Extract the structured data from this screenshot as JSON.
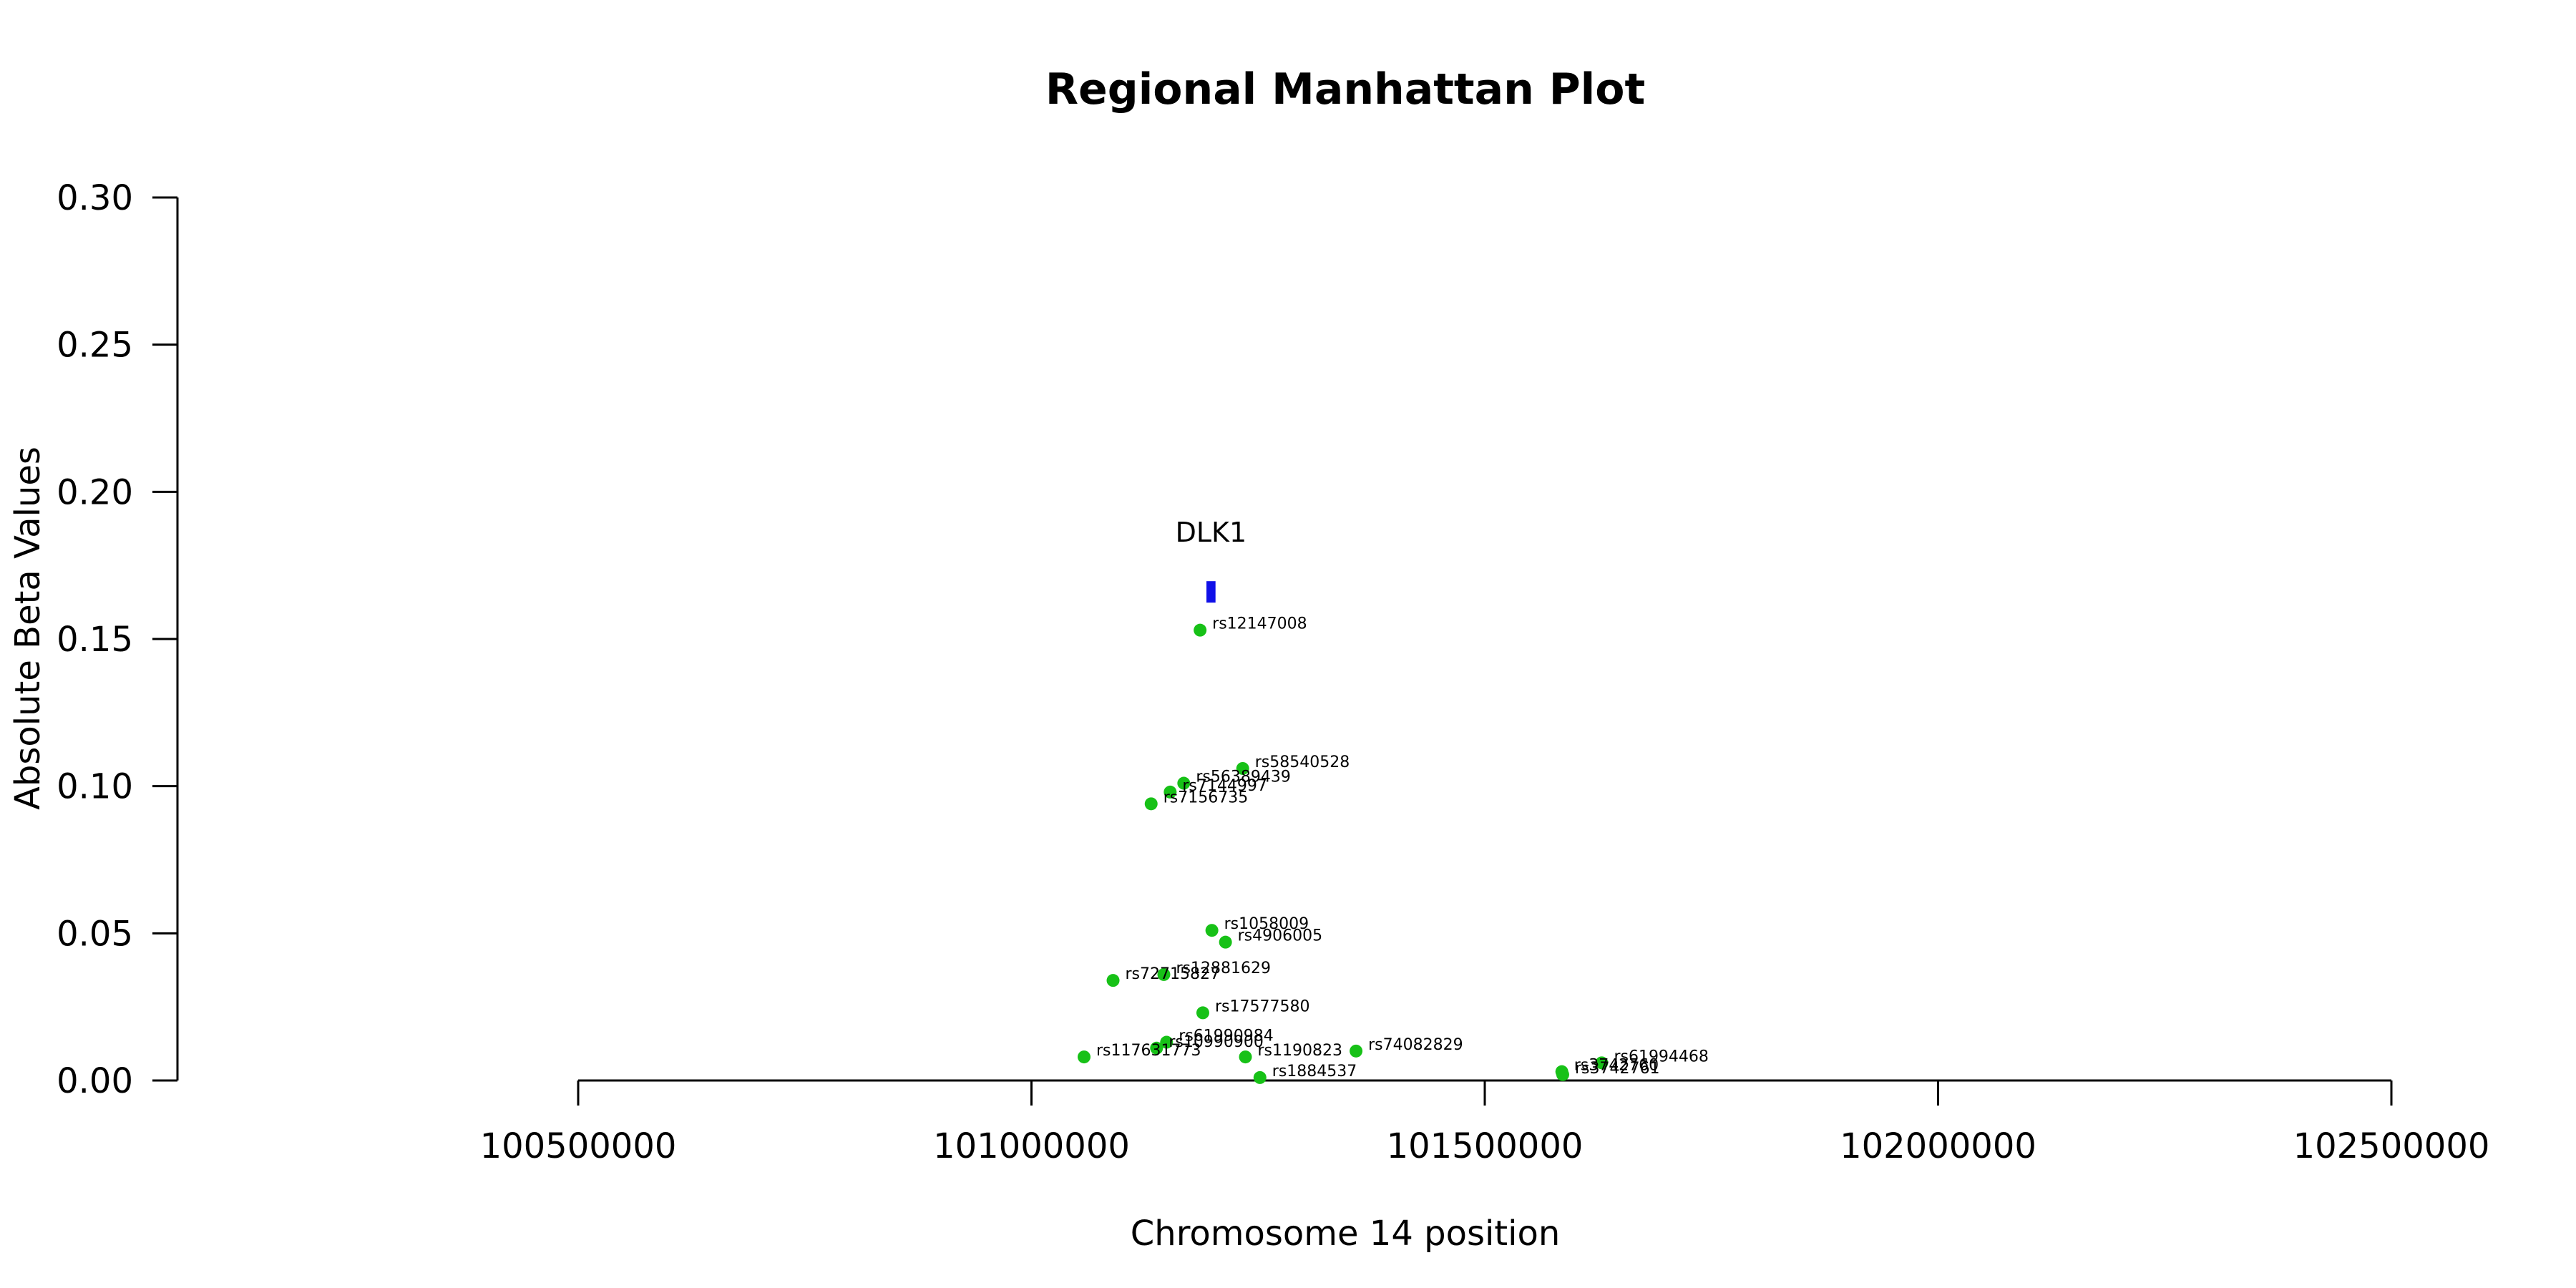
{
  "chart_data": {
    "type": "scatter",
    "title": "Regional Manhattan Plot",
    "xlabel": "Chromosome 14 position",
    "ylabel": "Absolute Beta Values",
    "xlim": [
      100500000,
      102500000
    ],
    "ylim": [
      0,
      0.3
    ],
    "x_ticks": [
      100500000,
      101000000,
      101500000,
      102000000,
      102500000
    ],
    "x_tick_labels": [
      "100500000",
      "101000000",
      "101500000",
      "102000000",
      "102500000"
    ],
    "y_ticks": [
      0.0,
      0.05,
      0.1,
      0.15,
      0.2,
      0.25,
      0.3
    ],
    "y_tick_labels": [
      "0.00",
      "0.05",
      "0.10",
      "0.15",
      "0.20",
      "0.25",
      "0.30"
    ],
    "grid": false,
    "point_color": "#17c117",
    "gene_color": "#1010e8",
    "genes": [
      {
        "name": "DLK1",
        "start": 101193000,
        "end": 101203000,
        "y": 0.166
      }
    ],
    "points": [
      {
        "label": "rs12147008",
        "x": 101186000,
        "y": 0.153
      },
      {
        "label": "rs58540528",
        "x": 101233000,
        "y": 0.106
      },
      {
        "label": "rs56389439",
        "x": 101168000,
        "y": 0.101
      },
      {
        "label": "rs7144997",
        "x": 101153000,
        "y": 0.098
      },
      {
        "label": "rs7156735",
        "x": 101132000,
        "y": 0.094
      },
      {
        "label": "rs1058009",
        "x": 101199000,
        "y": 0.051
      },
      {
        "label": "rs4906005",
        "x": 101214000,
        "y": 0.047
      },
      {
        "label": "rs12881629",
        "x": 101146000,
        "y": 0.036
      },
      {
        "label": "rs72715827",
        "x": 101090000,
        "y": 0.034
      },
      {
        "label": "rs17577580",
        "x": 101189000,
        "y": 0.023
      },
      {
        "label": "rs61990984",
        "x": 101149000,
        "y": 0.013
      },
      {
        "label": "rs10990900",
        "x": 101138000,
        "y": 0.011
      },
      {
        "label": "rs117631773",
        "x": 101058000,
        "y": 0.008
      },
      {
        "label": "rs1190823",
        "x": 101236000,
        "y": 0.008
      },
      {
        "label": "rs74082829",
        "x": 101358000,
        "y": 0.01
      },
      {
        "label": "rs1884537",
        "x": 101252000,
        "y": 0.001
      },
      {
        "label": "rs61994468",
        "x": 101629000,
        "y": 0.006
      },
      {
        "label": "rs3742760",
        "x": 101585000,
        "y": 0.003
      },
      {
        "label": "rs3742761",
        "x": 101586000,
        "y": 0.002
      }
    ]
  }
}
